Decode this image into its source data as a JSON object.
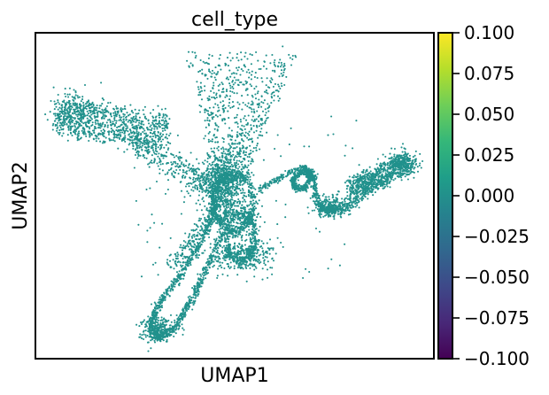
{
  "chart_data": {
    "type": "scatter",
    "title": "cell_type",
    "xlabel": "UMAP1",
    "ylabel": "UMAP2",
    "xticks": [],
    "yticks": [],
    "point_color": "#21918c",
    "colorbar": {
      "colormap": "viridis",
      "range": [
        -0.1,
        0.1
      ],
      "ticks": [
        0.1,
        0.075,
        0.05,
        0.025,
        0.0,
        -0.025,
        -0.05,
        -0.075,
        -0.1
      ],
      "tick_labels": [
        "0.100",
        "0.075",
        "0.050",
        "0.025",
        "0.000",
        "−0.025",
        "−0.050",
        "−0.075",
        "−0.100"
      ],
      "colors": [
        "#440154",
        "#482878",
        "#3e4989",
        "#31688e",
        "#26828e",
        "#1f9e89",
        "#35b779",
        "#6ece58",
        "#b5de2b",
        "#fde725"
      ]
    },
    "value_all_points": 0.0
  }
}
